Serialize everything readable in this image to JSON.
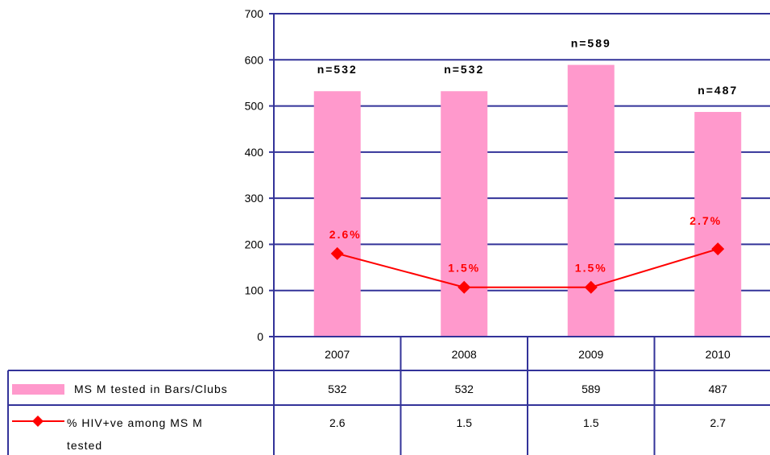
{
  "chart_data": {
    "type": "bar+line",
    "categories": [
      "2007",
      "2008",
      "2009",
      "2010"
    ],
    "ylim": [
      0,
      700
    ],
    "yticks": [
      "0",
      "100",
      "200",
      "300",
      "400",
      "500",
      "600",
      "700"
    ],
    "grid": true,
    "series": [
      {
        "name": "MS M tested in Bars/Clubs",
        "type": "bar",
        "color": "#ff99cc",
        "values": [
          532,
          532,
          589,
          487
        ],
        "labels": [
          "n=532",
          "n=532",
          "n=589",
          "n=487"
        ],
        "table_values": [
          "532",
          "532",
          "589",
          "487"
        ]
      },
      {
        "name": "% HIV+ve among MS M tested",
        "name_line1": "% HIV+ve among MS M",
        "name_line2": "tested",
        "type": "line",
        "color": "#ff0000",
        "marker": "diamond",
        "values": [
          2.6,
          1.5,
          1.5,
          2.7
        ],
        "plotted_at": [
          180,
          107,
          107,
          190
        ],
        "labels": [
          "2.6%",
          "1.5%",
          "1.5%",
          "2.7%"
        ],
        "table_values": [
          "2.6",
          "1.5",
          "1.5",
          "2.7"
        ]
      }
    ],
    "data_table": true,
    "colors": {
      "axis": "#333399",
      "grid": "#333399"
    }
  }
}
